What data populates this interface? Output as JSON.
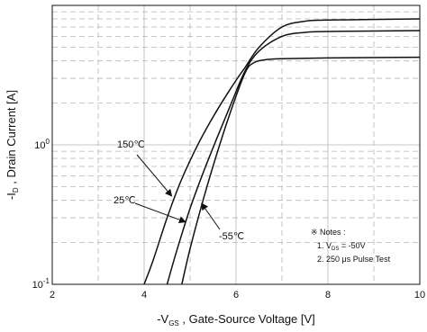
{
  "chart_data": {
    "type": "line",
    "xlabel": "-VGS , Gate-Source Voltage  [V]",
    "xlabel_parts": {
      "prefix": "-V",
      "sub": "GS",
      "rest": " , Gate-Source Voltage  [V]"
    },
    "ylabel": "-ID , Drain Current  [A]",
    "ylabel_parts": {
      "prefix": "-I",
      "sub": "D",
      "rest": " , Drain Current  [A]"
    },
    "xlim": [
      2,
      10
    ],
    "ylim": [
      0.1,
      10
    ],
    "y_scale": "log",
    "grid": true,
    "x_ticks": [
      2,
      4,
      6,
      8,
      10
    ],
    "y_ticks": [
      {
        "value": 0.1,
        "base": "10",
        "exp": "-1"
      },
      {
        "value": 1,
        "base": "10",
        "exp": "0"
      }
    ],
    "series": [
      {
        "name": "150℃",
        "x": [
          4.0,
          4.2,
          4.5,
          4.8,
          5.2,
          5.6,
          6.0,
          6.2,
          6.5,
          7.0,
          7.5,
          8.0,
          10.0
        ],
        "y": [
          0.1,
          0.15,
          0.3,
          0.55,
          1.05,
          1.8,
          2.9,
          3.6,
          5.0,
          7.0,
          7.7,
          7.85,
          8.0
        ]
      },
      {
        "name": "25℃",
        "x": [
          4.5,
          4.7,
          5.0,
          5.3,
          5.6,
          5.9,
          6.2,
          6.5,
          7.0,
          7.5,
          8.0,
          10.0
        ],
        "y": [
          0.1,
          0.17,
          0.35,
          0.65,
          1.15,
          2.0,
          3.4,
          4.7,
          6.0,
          6.4,
          6.5,
          6.6
        ]
      },
      {
        "name": "-55℃",
        "x": [
          4.82,
          5.0,
          5.3,
          5.6,
          5.9,
          6.2,
          6.4,
          6.7,
          7.0,
          8.0,
          10.0
        ],
        "y": [
          0.1,
          0.18,
          0.42,
          0.9,
          1.8,
          3.3,
          3.9,
          4.1,
          4.15,
          4.2,
          4.25
        ]
      }
    ],
    "annotations": [
      {
        "text": "150℃",
        "arrow_to": [
          4.6,
          0.43
        ]
      },
      {
        "text": "25℃",
        "arrow_to": [
          4.9,
          0.28
        ]
      },
      {
        "text": "-55℃",
        "arrow_to": [
          5.25,
          0.38
        ]
      }
    ],
    "notes": {
      "title": "※ Notes :",
      "line1_prefix": "1. V",
      "line1_sub": "DS",
      "line1_rest": " = -50V",
      "line2": "2. 250 μs Pulse Test"
    }
  }
}
